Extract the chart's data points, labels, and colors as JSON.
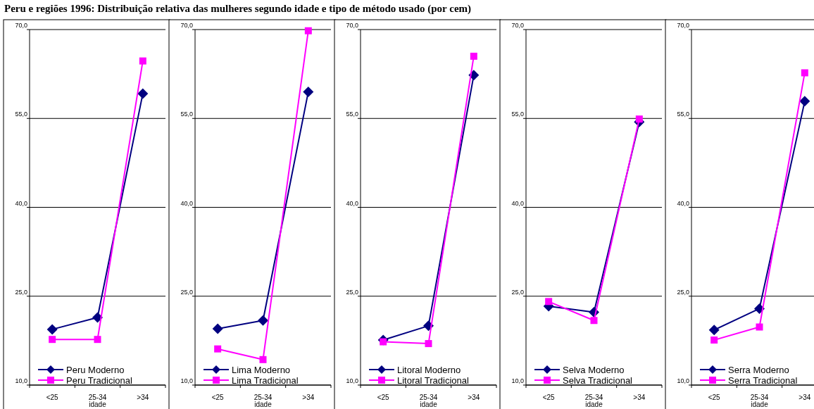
{
  "chart_data": [
    {
      "type": "line",
      "title": "Peru e regiões 1996: Distribuição relativa das mulheres segundo idade e tipo de método usado (por cem)",
      "xlabel": "idade",
      "categories": [
        "<25",
        "25-34",
        ">34"
      ],
      "ylim": [
        10,
        70
      ],
      "yticks": [
        {
          "value": 10,
          "label": "10,0"
        },
        {
          "value": 25,
          "label": "25,0"
        },
        {
          "value": 40,
          "label": "40,0"
        },
        {
          "value": 55,
          "label": "55,0"
        },
        {
          "value": 70,
          "label": "70,0"
        }
      ],
      "grid": "y",
      "legend": "bottom left",
      "series": [
        {
          "name": "Peru Moderno",
          "color": "#000080",
          "marker": "diamond",
          "values": [
            19.4,
            21.4,
            59.2
          ]
        },
        {
          "name": "Peru Tradicional",
          "color": "#ff00ff",
          "marker": "square",
          "values": [
            17.7,
            17.7,
            64.7
          ]
        }
      ]
    },
    {
      "type": "line",
      "xlabel": "idade",
      "categories": [
        "<25",
        "25-34",
        ">34"
      ],
      "ylim": [
        10,
        70
      ],
      "yticks": [
        {
          "value": 10,
          "label": "10,0"
        },
        {
          "value": 25,
          "label": "25,0"
        },
        {
          "value": 40,
          "label": "40,0"
        },
        {
          "value": 55,
          "label": "55,0"
        },
        {
          "value": 70,
          "label": "70,0"
        }
      ],
      "grid": "y",
      "legend": "bottom left",
      "series": [
        {
          "name": "Lima Moderno",
          "color": "#000080",
          "marker": "diamond",
          "values": [
            19.5,
            20.9,
            59.5
          ]
        },
        {
          "name": "Lima Tradicional",
          "color": "#ff00ff",
          "marker": "square",
          "values": [
            16.1,
            14.3,
            69.8
          ]
        }
      ]
    },
    {
      "type": "line",
      "xlabel": "idade",
      "categories": [
        "<25",
        "25-34",
        ">34"
      ],
      "ylim": [
        10,
        70
      ],
      "yticks": [
        {
          "value": 10,
          "label": "10,0"
        },
        {
          "value": 25,
          "label": "25,0"
        },
        {
          "value": 40,
          "label": "40,0"
        },
        {
          "value": 55,
          "label": "55,0"
        },
        {
          "value": 70,
          "label": "70,0"
        }
      ],
      "grid": "y",
      "legend": "bottom left",
      "series": [
        {
          "name": "Litoral Moderno",
          "color": "#000080",
          "marker": "diamond",
          "values": [
            17.6,
            20.0,
            62.3
          ]
        },
        {
          "name": "Litoral Tradicional",
          "color": "#ff00ff",
          "marker": "square",
          "values": [
            17.3,
            17.0,
            65.5
          ]
        }
      ]
    },
    {
      "type": "line",
      "xlabel": "idade",
      "categories": [
        "<25",
        "25-34",
        ">34"
      ],
      "ylim": [
        10,
        70
      ],
      "yticks": [
        {
          "value": 10,
          "label": "10,0"
        },
        {
          "value": 25,
          "label": "25,0"
        },
        {
          "value": 40,
          "label": "40,0"
        },
        {
          "value": 55,
          "label": "55,0"
        },
        {
          "value": 70,
          "label": "70,0"
        }
      ],
      "grid": "y",
      "legend": "bottom left",
      "series": [
        {
          "name": "Selva Moderno",
          "color": "#000080",
          "marker": "diamond",
          "values": [
            23.3,
            22.3,
            54.4
          ]
        },
        {
          "name": "Selva Tradicional",
          "color": "#ff00ff",
          "marker": "square",
          "values": [
            24.1,
            20.9,
            54.9
          ]
        }
      ]
    },
    {
      "type": "line",
      "xlabel": "idade",
      "categories": [
        "<25",
        "25-34",
        ">34"
      ],
      "ylim": [
        10,
        70
      ],
      "yticks": [
        {
          "value": 10,
          "label": "10,0"
        },
        {
          "value": 25,
          "label": "25,0"
        },
        {
          "value": 40,
          "label": "40,0"
        },
        {
          "value": 55,
          "label": "55,0"
        },
        {
          "value": 70,
          "label": "70,0"
        }
      ],
      "grid": "y",
      "legend": "bottom left",
      "series": [
        {
          "name": "Serra Moderno",
          "color": "#000080",
          "marker": "diamond",
          "values": [
            19.3,
            22.9,
            57.9
          ]
        },
        {
          "name": "Serra Tradicional",
          "color": "#ff00ff",
          "marker": "square",
          "values": [
            17.6,
            19.8,
            62.7
          ]
        }
      ]
    }
  ]
}
